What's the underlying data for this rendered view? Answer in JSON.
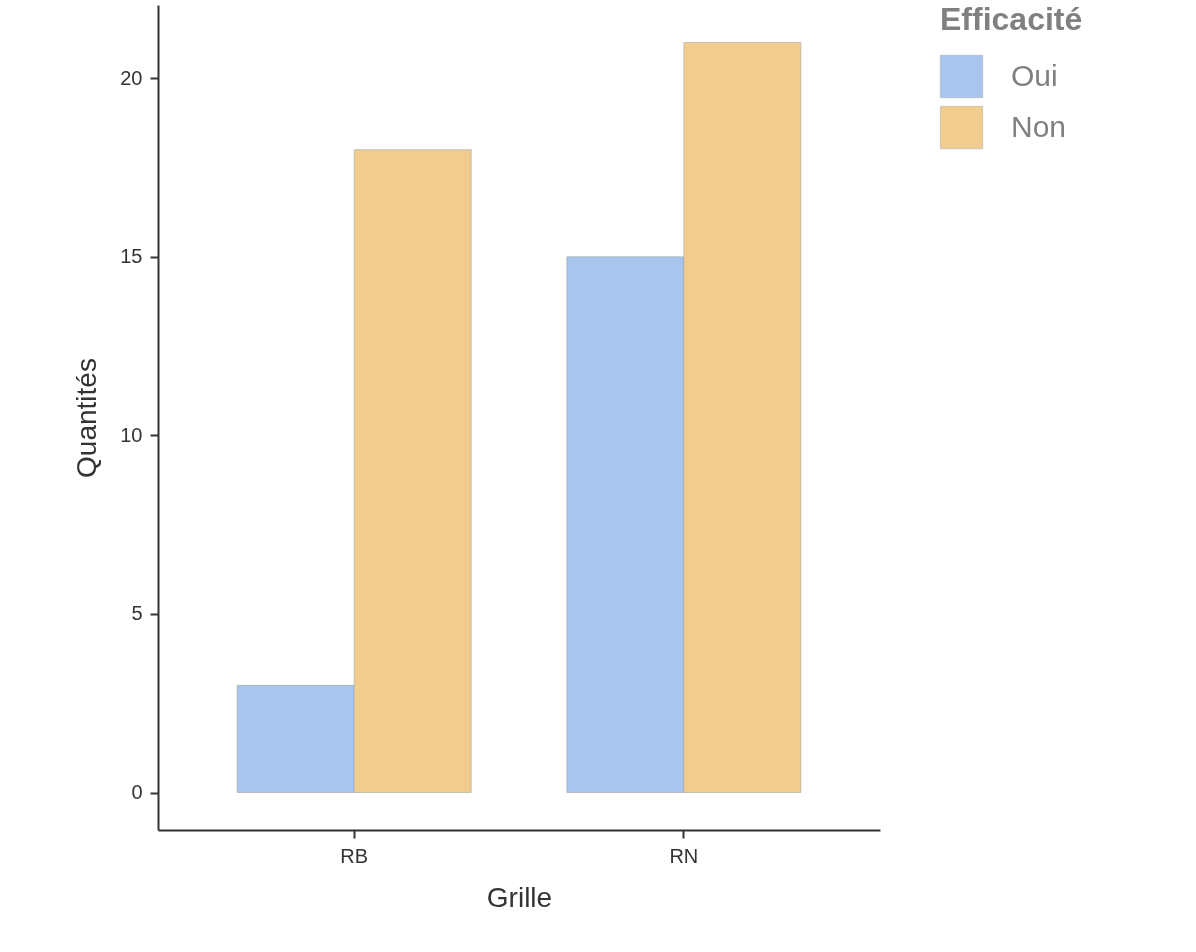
{
  "chart_data": {
    "type": "bar",
    "xlabel": "Grille",
    "ylabel": "Quantités",
    "legend_title": "Efficacité",
    "categories": [
      "RB",
      "RN"
    ],
    "series": [
      {
        "name": "Oui",
        "color": "#a8c5f0",
        "values": [
          3,
          15
        ]
      },
      {
        "name": "Non",
        "color": "#f0cd8e",
        "values": [
          18,
          21
        ]
      }
    ],
    "ylim": [
      -1.05,
      22.05
    ],
    "yticks": [
      0,
      5,
      10,
      15,
      20
    ],
    "grid": false,
    "legend": "right"
  }
}
